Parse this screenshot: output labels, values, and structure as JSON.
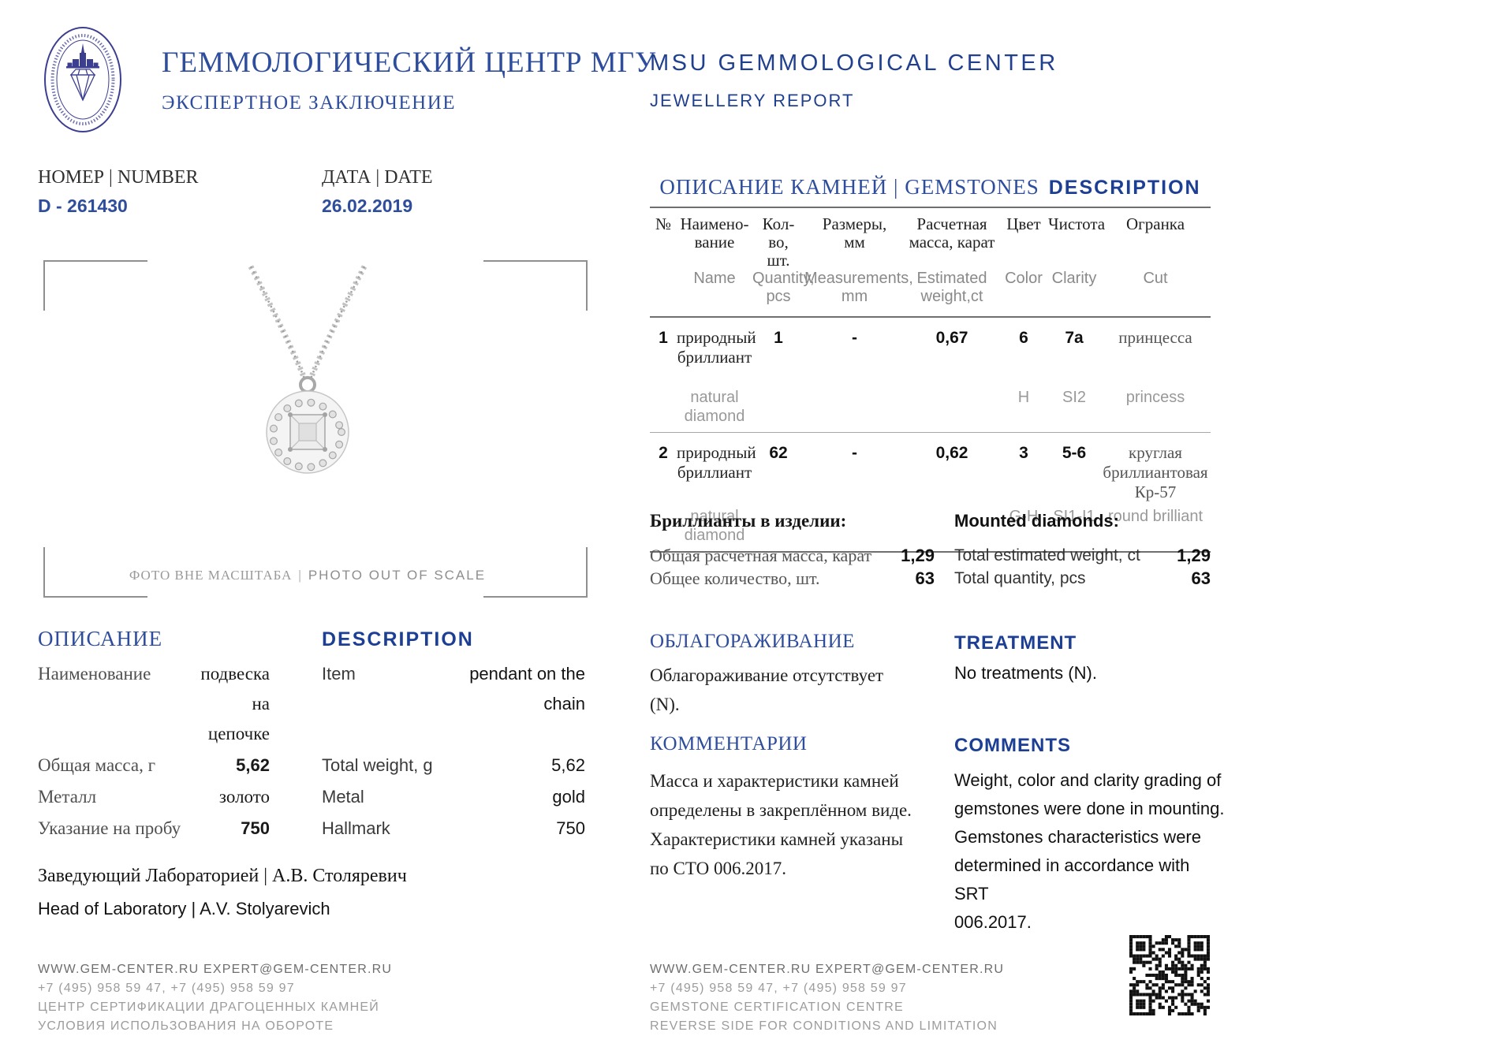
{
  "colors": {
    "accent_serif_blue": "#2e4d9c",
    "accent_sans_blue": "#1c3f94",
    "logo_indigo": "#3c3e90"
  },
  "header": {
    "org_ru": "ГЕММОЛОГИЧЕСКИЙ ЦЕНТР МГУ",
    "doc_ru": "ЭКСПЕРТНОЕ ЗАКЛЮЧЕНИЕ",
    "org_en": "MSU GEMMOLOGICAL CENTER",
    "doc_en": "JEWELLERY REPORT"
  },
  "meta": {
    "number_label": "НОМЕР | NUMBER",
    "number_value": "D - 261430",
    "date_label": "ДАТА | DATE",
    "date_value": "26.02.2019"
  },
  "photo": {
    "caption_ru": "ФОТО ВНЕ МАСШТАБА",
    "caption_sep": "|",
    "caption_en": "PHOTO OUT OF SCALE",
    "subject": "pendant on the chain"
  },
  "description": {
    "heading_ru": "ОПИСАНИЕ",
    "heading_en": "DESCRIPTION",
    "rows": [
      {
        "label_ru": "Наименование",
        "value_ru": "подвеска на\nцепочке",
        "label_en": "Item",
        "value_en": "pendant on the\nchain"
      },
      {
        "label_ru": "Общая масса, г",
        "value_ru": "5,62",
        "label_en": "Total weight, g",
        "value_en": "5,62"
      },
      {
        "label_ru": "Металл",
        "value_ru": "золото",
        "label_en": "Metal",
        "value_en": "gold"
      },
      {
        "label_ru": "Указание на пробу",
        "value_ru": "750",
        "label_en": "Hallmark",
        "value_en": "750"
      }
    ]
  },
  "signature": {
    "ru": "Заведующий Лабораторией | А.В. Столяревич",
    "en": "Head of Laboratory | A.V. Stolyarevich"
  },
  "gemstones": {
    "heading_ru": "ОПИСАНИЕ КАМНЕЙ | GEMSTONES",
    "heading_en": "DESCRIPTION",
    "header": {
      "num": "№",
      "name_ru": "Наимено-\nвание",
      "name_en": "Name",
      "qty_ru": "Кол-во,\nшт.",
      "qty_en": "Quantity,\npcs",
      "meas_ru": "Размеры,\nмм",
      "meas_en": "Measurements,\nmm",
      "wt_ru": "Расчетная\nмасса, карат",
      "wt_en": "Estimated\nweight,ct",
      "color_ru": "Цвет",
      "color_en": "Color",
      "clarity_ru": "Чистота",
      "clarity_en": "Clarity",
      "cut_ru": "Огранка",
      "cut_en": "Cut"
    },
    "rows": [
      {
        "num": "1",
        "name_ru": "природный\nбриллиант",
        "qty": "1",
        "meas": "-",
        "weight": "0,67",
        "color_ru": "6",
        "clarity_ru": "7a",
        "cut_ru": "принцесса",
        "name_en": "natural\ndiamond",
        "color_en": "H",
        "clarity_en": "SI2",
        "cut_en": "princess"
      },
      {
        "num": "2",
        "name_ru": "природный\nбриллиант",
        "qty": "62",
        "meas": "-",
        "weight": "0,62",
        "color_ru": "3",
        "clarity_ru": "5-6",
        "cut_ru": "круглая\nбриллиантовая\nКр-57",
        "name_en": "natural\ndiamond",
        "color_en": "G-H",
        "clarity_en": "SI1-I1",
        "cut_en": "round brilliant"
      }
    ]
  },
  "mounted": {
    "heading_ru": "Бриллианты в изделии:",
    "heading_en": "Mounted diamonds:",
    "rows": [
      {
        "label_ru": "Общая расчетная масса, карат",
        "label_en": "Total estimated weight, ct",
        "value": "1,29"
      },
      {
        "label_ru": "Общее количество, шт.",
        "label_en": "Total quantity, pcs",
        "value": "63"
      }
    ]
  },
  "treatment": {
    "heading_ru": "ОБЛАГОРАЖИВАНИЕ",
    "heading_en": "TREATMENT",
    "text_ru": "Облагораживание отсутствует\n(N).",
    "text_en": "No treatments (N)."
  },
  "comments": {
    "heading_ru": "КОММЕНТАРИИ",
    "heading_en": "COMMENTS",
    "text_ru": "Масса и характеристики камней\nопределены в закреплённом виде.\nХарактеристики камней указаны\nпо СТО 006.2017.",
    "text_en": "Weight, color and clarity grading of\ngemstones were done in mounting.\nGemstones characteristics were\ndetermined in accordance with SRT\n006.2017."
  },
  "footer": {
    "left": {
      "line1": "WWW.GEM-CENTER.RU EXPERT@GEM-CENTER.RU",
      "line2": "+7 (495) 958 59 47, +7 (495) 958 59 97",
      "line3": "ЦЕНТР СЕРТИФИКАЦИИ ДРАГОЦЕННЫХ КАМНЕЙ",
      "line4": "УСЛОВИЯ ИСПОЛЬЗОВАНИЯ НА ОБОРОТЕ"
    },
    "right": {
      "line1": "WWW.GEM-CENTER.RU EXPERT@GEM-CENTER.RU",
      "line2": "+7 (495) 958 59 47, +7 (495) 958 59 97",
      "line3": "GEMSTONE CERTIFICATION CENTRE",
      "line4": "REVERSE SIDE FOR CONDITIONS AND LIMITATION"
    }
  }
}
